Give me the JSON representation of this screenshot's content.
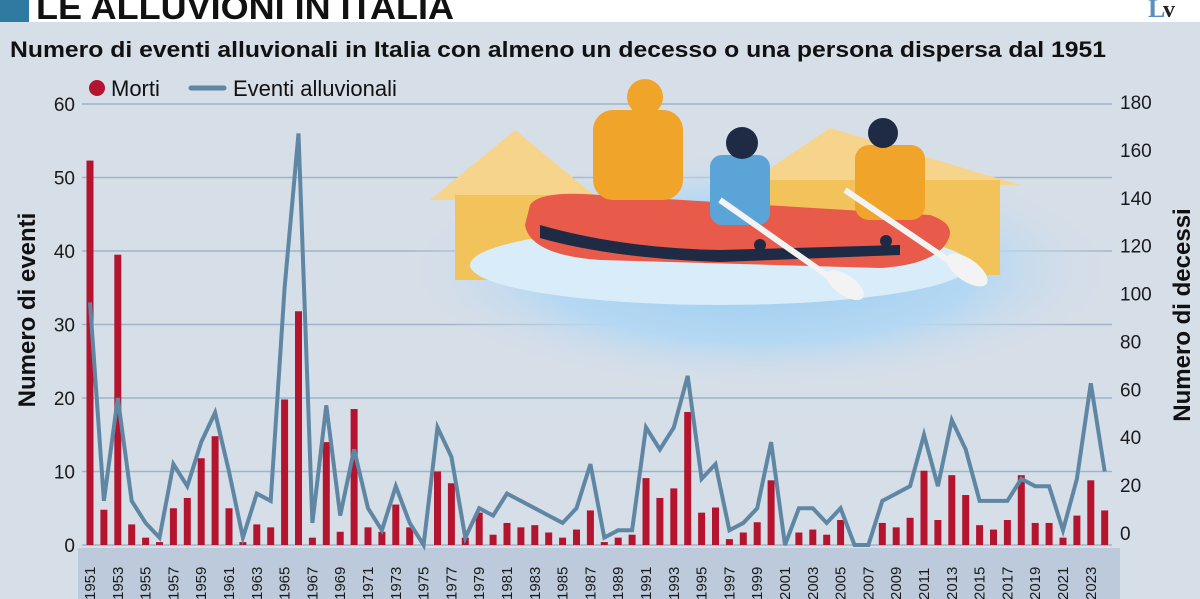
{
  "header": {
    "title": "LE ALLUVIONI IN ITALIA",
    "logo_text": "Lv",
    "accent_color": "#2f7aa0"
  },
  "chart_data": {
    "type": "bar+line",
    "subtitle": "Numero di eventi alluvionali in Italia con almeno un decesso o una persona dispersa dal 1951",
    "legend": {
      "position": "top-left",
      "bars_label": "Morti",
      "line_label": "Eventi alluvionali"
    },
    "ylabel_left": "Numero di eventi",
    "ylabel_right": "Numero di decessi",
    "ylim_left": [
      0,
      60
    ],
    "ylim_right": [
      0,
      180
    ],
    "yticks_left": [
      "0",
      "10",
      "20",
      "30",
      "40",
      "50",
      "60"
    ],
    "yticks_right": [
      "0",
      "20",
      "40",
      "60",
      "80",
      "100",
      "120",
      "140",
      "160",
      "180"
    ],
    "grid": true,
    "colors": {
      "bars": "#b5142f",
      "line": "#5f87a3",
      "background": "#d6dee8",
      "axis_strip": "#bccadb"
    },
    "x_tick_labels": [
      "1951",
      "1953",
      "1955",
      "1957",
      "1959",
      "1961",
      "1963",
      "1965",
      "1967",
      "1969",
      "1971",
      "1973",
      "1975",
      "1977",
      "1979",
      "1981",
      "1983",
      "1985",
      "1987",
      "1989",
      "1991",
      "1993",
      "1995",
      "1997",
      "1999",
      "2001",
      "2003",
      "2005",
      "2007",
      "2009",
      "2011",
      "2013",
      "2015",
      "2017",
      "2019",
      "2021",
      "2023"
    ],
    "x": [
      1951,
      1952,
      1953,
      1954,
      1955,
      1956,
      1957,
      1958,
      1959,
      1960,
      1961,
      1962,
      1963,
      1964,
      1965,
      1966,
      1967,
      1968,
      1969,
      1970,
      1971,
      1972,
      1973,
      1974,
      1975,
      1976,
      1977,
      1978,
      1979,
      1980,
      1981,
      1982,
      1983,
      1984,
      1985,
      1986,
      1987,
      1988,
      1989,
      1990,
      1991,
      1992,
      1993,
      1994,
      1995,
      1996,
      1997,
      1998,
      1999,
      2000,
      2001,
      2002,
      2003,
      2004,
      2005,
      2006,
      2007,
      2008,
      2009,
      2010,
      2011,
      2012,
      2013,
      2014,
      2015,
      2016,
      2017,
      2018,
      2019,
      2020,
      2021,
      2022,
      2023,
      2024
    ],
    "series": [
      {
        "name": "Morti",
        "type": "bar",
        "axis": "left",
        "values": [
          52.3,
          4.8,
          39.5,
          2.8,
          1.0,
          0.4,
          5.0,
          6.4,
          11.8,
          14.8,
          5.0,
          0.4,
          2.8,
          2.4,
          19.8,
          31.8,
          1.0,
          14.0,
          1.8,
          18.5,
          2.4,
          1.8,
          5.5,
          2.4,
          0,
          10.0,
          8.4,
          1.0,
          4.4,
          1.4,
          3.0,
          2.4,
          2.7,
          1.7,
          1.0,
          2.1,
          4.7,
          0.4,
          1.0,
          1.4,
          9.1,
          6.4,
          7.7,
          18.1,
          4.4,
          5.1,
          0.8,
          1.7,
          3.1,
          8.8,
          0,
          1.7,
          2.1,
          1.4,
          3.4,
          0,
          0,
          3.0,
          2.4,
          3.7,
          10.1,
          3.4,
          9.5,
          6.8,
          2.7,
          2.1,
          3.4,
          9.5,
          3.0,
          3.0,
          1.0,
          4.0,
          8.8,
          4.7
        ]
      },
      {
        "name": "Eventi alluvionali",
        "type": "line",
        "axis": "left",
        "values": [
          33,
          6,
          20,
          6,
          3,
          1,
          11,
          8,
          14,
          18,
          10,
          1,
          7,
          6,
          35,
          56,
          3,
          19,
          4,
          13,
          5,
          2,
          8,
          3,
          0,
          16,
          12,
          1,
          5,
          4,
          7,
          6,
          5,
          4,
          3,
          5,
          11,
          1,
          2,
          2,
          16,
          13,
          16,
          23,
          9,
          11,
          2,
          3,
          5,
          14,
          0,
          5,
          5,
          3,
          5,
          0,
          0,
          6,
          7,
          8,
          15,
          8,
          17,
          13,
          6,
          6,
          6,
          9,
          8,
          8,
          2,
          9,
          22,
          10
        ]
      }
    ]
  }
}
